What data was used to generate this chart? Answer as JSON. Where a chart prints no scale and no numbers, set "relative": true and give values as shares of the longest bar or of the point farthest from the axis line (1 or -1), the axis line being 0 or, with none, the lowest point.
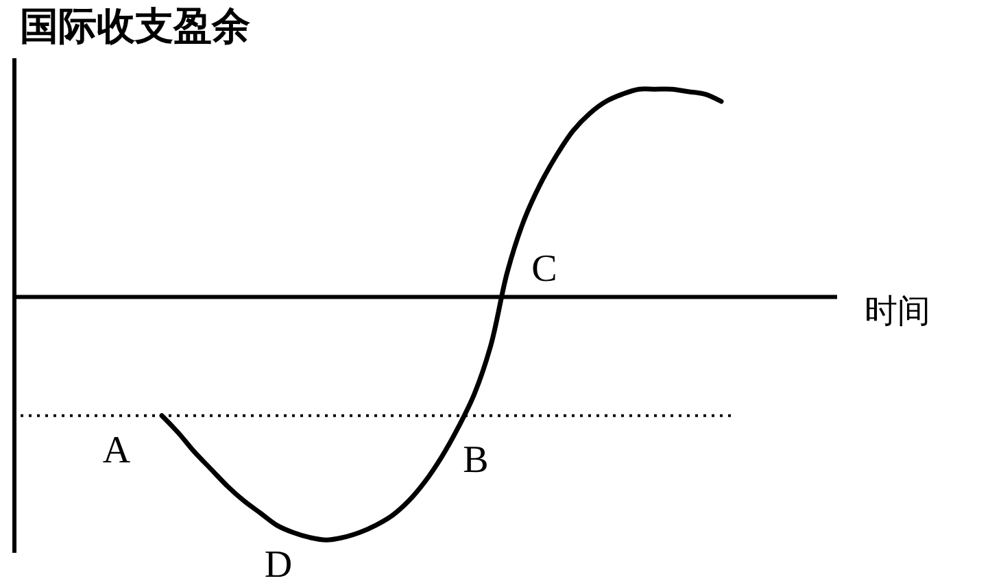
{
  "chart_data": {
    "type": "line",
    "relative": true,
    "xlabel": "时间",
    "ylabel": "国际收支盈余",
    "categories": [
      null,
      null,
      null,
      null,
      null,
      null,
      null,
      null,
      null,
      null,
      null,
      null,
      null,
      null,
      null,
      null,
      null,
      null,
      null,
      null,
      null,
      null,
      null,
      null,
      null,
      null,
      null,
      null,
      null,
      null,
      null,
      null,
      null,
      null,
      null,
      null,
      null,
      null,
      null,
      null,
      null,
      null,
      null,
      null,
      null,
      null,
      null,
      null,
      null,
      null,
      null
    ],
    "series": [
      {
        "color": "#000000",
        "values": [
          null,
          null,
          null,
          null,
          null,
          null,
          null,
          null,
          null,
          -0.49,
          -0.56,
          -0.64,
          -0.71,
          -0.78,
          -0.84,
          -0.89,
          -0.94,
          -0.97,
          -0.99,
          -1.0,
          -0.99,
          -0.97,
          -0.94,
          -0.9,
          -0.84,
          -0.76,
          -0.66,
          -0.54,
          -0.4,
          -0.2,
          0.1,
          0.31,
          0.46,
          0.58,
          0.68,
          0.75,
          0.8,
          0.83,
          0.85,
          0.85,
          0.85,
          0.84,
          0.83,
          0.8,
          null,
          null,
          null,
          null,
          null,
          null,
          null
        ]
      }
    ],
    "ref_lines": [
      {
        "axis": "y",
        "value": -0.49,
        "line_style": "dotted",
        "color": "#000000"
      }
    ],
    "annotations": [
      {
        "text": "A",
        "y": -0.49
      },
      {
        "text": "B",
        "y": -0.49
      },
      "C",
      "D"
    ]
  }
}
